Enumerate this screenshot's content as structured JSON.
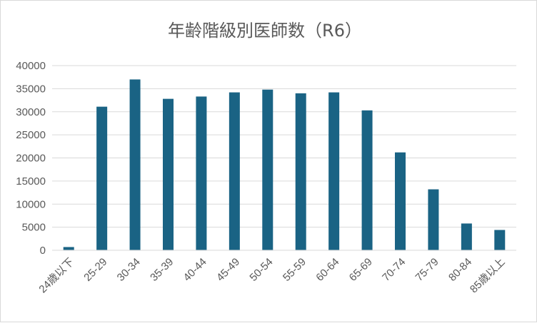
{
  "chart_data": {
    "type": "bar",
    "title": "年齢階級別医師数（R6）",
    "xlabel": "",
    "ylabel": "",
    "categories": [
      "24歳以下",
      "25-29",
      "30-34",
      "35-39",
      "40-44",
      "45-49",
      "50-54",
      "55-59",
      "60-64",
      "65-69",
      "70-74",
      "75-79",
      "80-84",
      "85歳以上"
    ],
    "values": [
      700,
      31100,
      37000,
      32800,
      33300,
      34200,
      34800,
      34000,
      34200,
      30300,
      21200,
      13200,
      5800,
      4400
    ],
    "ylim": [
      0,
      40000
    ],
    "yticks": [
      0,
      5000,
      10000,
      15000,
      20000,
      25000,
      30000,
      35000,
      40000
    ],
    "grid": true,
    "legend": "none",
    "bar_color": "#1a6384"
  }
}
